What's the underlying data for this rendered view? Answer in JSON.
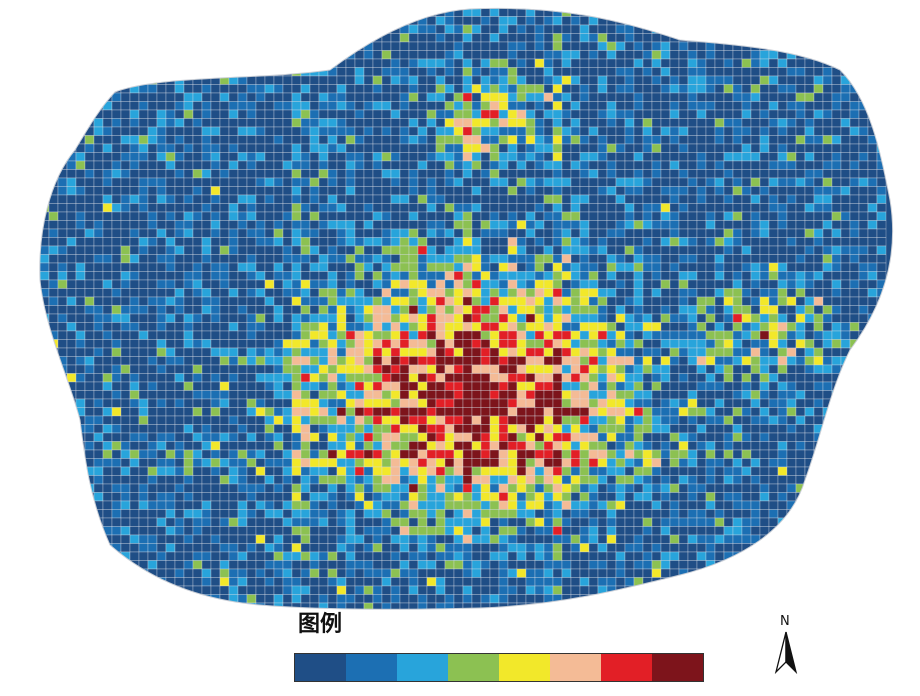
{
  "legend": {
    "title": "图例",
    "colors": [
      "#1f4e86",
      "#1c6fb3",
      "#28a4db",
      "#8cc152",
      "#f2e82a",
      "#f4bb96",
      "#e21f26",
      "#7d141b"
    ]
  },
  "north_label": "N",
  "map": {
    "grid_cols": 94,
    "grid_rows": 71,
    "background_color": "#1f4e86",
    "grid_line_color": "#d8dde6"
  }
}
